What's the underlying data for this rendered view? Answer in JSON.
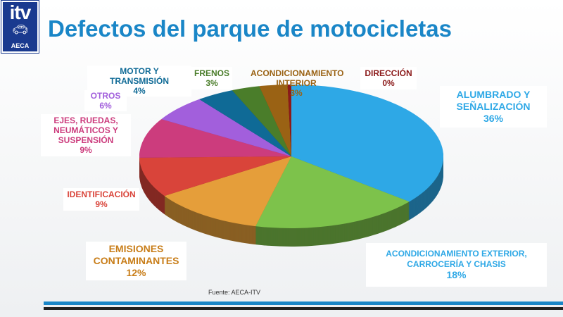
{
  "logo": {
    "text": "itv",
    "sub": "AECA"
  },
  "title": "Defectos del parque de motocicletas",
  "source": "Fuente: AECA-ITV",
  "chart_data": {
    "type": "pie",
    "title": "Defectos del parque de motocicletas",
    "start": "top",
    "direction": "clockwise",
    "style": "3d",
    "slices": [
      {
        "name": "ALUMBRADO Y SEÑALIZACIÓN",
        "value": 36,
        "label": "36%",
        "color": "#2ea8e6"
      },
      {
        "name": "ACONDICIONAMIENTO EXTERIOR, CARROCERÍA Y CHASIS",
        "value": 18,
        "label": "18%",
        "color": "#7dc24b"
      },
      {
        "name": "EMISIONES CONTAMINANTES",
        "value": 12,
        "label": "12%",
        "color": "#e59e3a"
      },
      {
        "name": "IDENTIFICACIÓN",
        "value": 9,
        "label": "9%",
        "color": "#d9443a"
      },
      {
        "name": "EJES, RUEDAS, NEUMÁTICOS Y SUSPENSIÓN",
        "value": 9,
        "label": "9%",
        "color": "#cc3c7d"
      },
      {
        "name": "OTROS",
        "value": 6,
        "label": "6%",
        "color": "#a25fdc"
      },
      {
        "name": "MOTOR Y TRANSMISIÓN",
        "value": 4,
        "label": "4%",
        "color": "#0f6a96"
      },
      {
        "name": "FRENOS",
        "value": 3,
        "label": "3%",
        "color": "#4a7d2a"
      },
      {
        "name": "ACONDICIONAMIENTO INTERIOR",
        "value": 3,
        "label": "3%",
        "color": "#9a6214"
      },
      {
        "name": "DIRECCIÓN",
        "value": 0.4,
        "label": "0%",
        "color": "#8b1a1a"
      }
    ]
  }
}
